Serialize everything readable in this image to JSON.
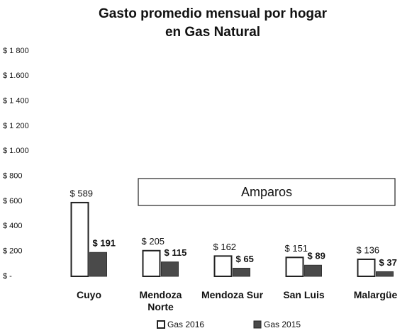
{
  "chart_data": {
    "type": "bar",
    "title": [
      "Gasto promedio mensual por hogar",
      "en Gas Natural"
    ],
    "categories": [
      "Cuyo",
      "Mendoza Norte",
      "Mendoza Sur",
      "San Luis",
      "Malargüe"
    ],
    "series": [
      {
        "name": "Gas 2016",
        "color": "#ffffff",
        "values": [
          589,
          205,
          162,
          151,
          136
        ],
        "value_labels": [
          "$ 589",
          "$ 205",
          "$ 162",
          "$ 151",
          "$ 136"
        ]
      },
      {
        "name": "Gas 2015",
        "color": "#4a4a4a",
        "values": [
          191,
          115,
          65,
          89,
          37
        ],
        "value_labels": [
          "$ 191",
          "$ 115",
          "$ 65",
          "$ 89",
          "$ 37"
        ]
      }
    ],
    "ylim": [
      0,
      1800
    ],
    "yticks": [
      {
        "value": 0,
        "label": "$ -"
      },
      {
        "value": 200,
        "label": "$ 200"
      },
      {
        "value": 400,
        "label": "$ 400"
      },
      {
        "value": 600,
        "label": "$ 600"
      },
      {
        "value": 800,
        "label": "$ 800"
      },
      {
        "value": 1000,
        "label": "$ 1.000"
      },
      {
        "value": 1200,
        "label": "$ 1 200"
      },
      {
        "value": 1400,
        "label": "$ 1 400"
      },
      {
        "value": 1600,
        "label": "$ 1.600"
      },
      {
        "value": 1800,
        "label": "$ 1 800"
      }
    ],
    "annotations": [
      "Amparos"
    ],
    "legend": "bottom"
  }
}
